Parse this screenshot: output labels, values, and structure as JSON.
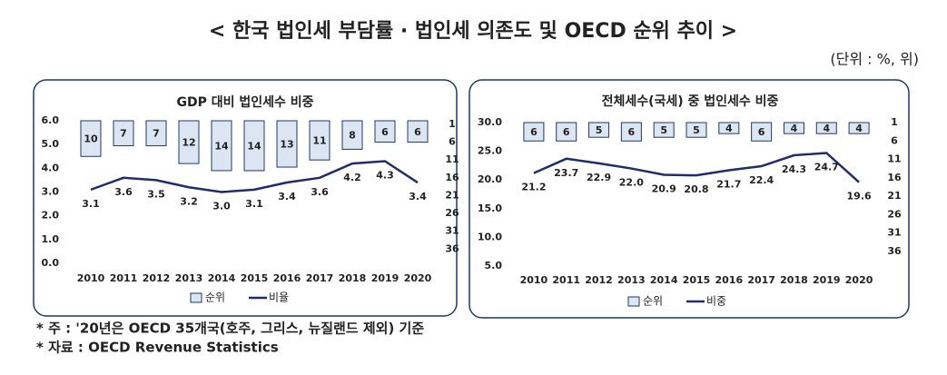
{
  "title": "< 한국 법인세 부담률 · 법인세 의존도 및 OECD 순위 추이 >",
  "unit": "(단위 : %, 위)",
  "notes": [
    "* 주 : '20년은 OECD 35개국(호주, 그리스, 뉴질랜드 제외) 기준",
    "* 자료 : OECD Revenue Statistics"
  ],
  "chart_data": [
    {
      "type": "combo",
      "title": "GDP 대비 법인세수 비중",
      "categories": [
        "2010",
        "2011",
        "2012",
        "2013",
        "2014",
        "2015",
        "2016",
        "2017",
        "2018",
        "2019",
        "2020"
      ],
      "series": [
        {
          "name": "순위",
          "type": "bar",
          "axis": "y2",
          "color": "#dce6f2",
          "values": [
            10,
            7,
            7,
            12,
            14,
            14,
            13,
            11,
            8,
            6,
            6
          ]
        },
        {
          "name": "비율",
          "type": "line",
          "axis": "y",
          "color": "#1f2d6b",
          "values": [
            3.1,
            3.6,
            3.5,
            3.2,
            3.0,
            3.1,
            3.4,
            3.6,
            4.2,
            4.3,
            3.4
          ],
          "value_labels": [
            "3.1",
            "3.6",
            "3.5",
            "3.2",
            "3.0",
            "3.1",
            "3.4",
            "3.6",
            "4.2",
            "4.3",
            "3.4"
          ]
        }
      ],
      "ylim": [
        0,
        6
      ],
      "yticks": [
        {
          "value": 0,
          "label": "0.0"
        },
        {
          "value": 1,
          "label": "1.0"
        },
        {
          "value": 2,
          "label": "2.0"
        },
        {
          "value": 3,
          "label": "3.0"
        },
        {
          "value": 4,
          "label": "4.0"
        },
        {
          "value": 5,
          "label": "5.0"
        },
        {
          "value": 6,
          "label": "6.0"
        }
      ],
      "y2lim": [
        0,
        40
      ],
      "y2_inverted": true,
      "y2ticks": [
        1,
        6,
        11,
        16,
        21,
        26,
        31,
        36
      ],
      "grid": false,
      "legend": "bottom"
    },
    {
      "type": "combo",
      "title": "전체세수(국세) 중 법인세수 비중",
      "categories": [
        "2010",
        "2011",
        "2012",
        "2013",
        "2014",
        "2015",
        "2016",
        "2017",
        "2018",
        "2019",
        "2020"
      ],
      "series": [
        {
          "name": "순위",
          "type": "bar",
          "axis": "y2",
          "color": "#dce6f2",
          "values": [
            6,
            6,
            5,
            6,
            5,
            5,
            4,
            6,
            4,
            4,
            4
          ]
        },
        {
          "name": "비중",
          "type": "line",
          "axis": "y",
          "color": "#1f2d6b",
          "values": [
            21.2,
            23.7,
            22.9,
            22.0,
            20.9,
            20.8,
            21.7,
            22.4,
            24.3,
            24.7,
            19.6
          ],
          "value_labels": [
            "21.2",
            "23.7",
            "22.9",
            "22.0",
            "20.9",
            "20.8",
            "21.7",
            "22.4",
            "24.3",
            "24.7",
            "19.6"
          ]
        }
      ],
      "ylim": [
        5,
        30
      ],
      "yticks": [
        {
          "value": 5,
          "label": "5.0"
        },
        {
          "value": 10,
          "label": "10.0"
        },
        {
          "value": 15,
          "label": "15.0"
        },
        {
          "value": 20,
          "label": "20.0"
        },
        {
          "value": 25,
          "label": "25.0"
        },
        {
          "value": 30,
          "label": "30.0"
        }
      ],
      "y2lim": [
        1,
        40
      ],
      "y2_inverted": true,
      "y2ticks": [
        1,
        6,
        11,
        16,
        21,
        26,
        31,
        36
      ],
      "grid": false,
      "legend": "bottom"
    }
  ]
}
